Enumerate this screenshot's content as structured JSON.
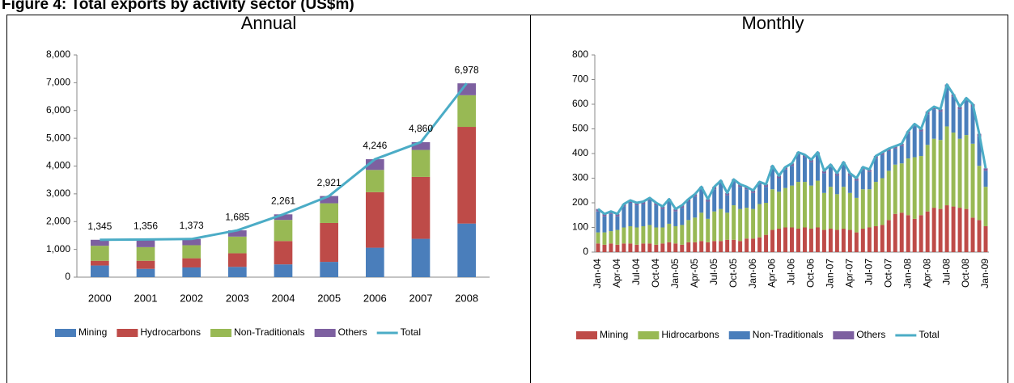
{
  "figure_title": "Figure 4: Total exports by activity sector (US$m)",
  "chart_data": [
    {
      "type": "bar",
      "stacked": true,
      "title": "Annual",
      "legend": "bottom",
      "grid": false,
      "categories": [
        "2000",
        "2001",
        "2002",
        "2003",
        "2004",
        "2005",
        "2006",
        "2007",
        "2008"
      ],
      "ylim": [
        0,
        8000
      ],
      "yticks": [
        0,
        {
          "value": 1000,
          "label": "1,000"
        },
        {
          "value": 2000,
          "label": "2,000"
        },
        {
          "value": 3000,
          "label": "3,000"
        },
        {
          "value": 4000,
          "label": "4,000"
        },
        {
          "value": 5000,
          "label": "5,000"
        },
        {
          "value": 6000,
          "label": "6,000"
        },
        {
          "value": 7000,
          "label": "7,000"
        },
        {
          "value": 8000,
          "label": "8,000"
        }
      ],
      "series": [
        {
          "name": "Mining",
          "color": "#4a7ebb",
          "values": [
            420,
            300,
            350,
            370,
            460,
            550,
            1060,
            1380,
            1930
          ]
        },
        {
          "name": "Hydrocarbons",
          "color": "#be4b48",
          "values": [
            170,
            290,
            330,
            490,
            840,
            1400,
            2000,
            2230,
            3480
          ]
        },
        {
          "name": "Non-Traditionals",
          "color": "#98b954",
          "values": [
            540,
            490,
            470,
            600,
            760,
            710,
            800,
            970,
            1140
          ]
        },
        {
          "name": "Others",
          "color": "#7d60a0",
          "values": [
            215,
            276,
            223,
            225,
            201,
            261,
            386,
            280,
            428
          ]
        },
        {
          "name": "Total",
          "type": "line",
          "color": "#4bacc6",
          "values": [
            1345,
            1356,
            1373,
            1685,
            2261,
            2921,
            4246,
            4860,
            6978
          ],
          "value_labels": [
            "1,345",
            "1,356",
            "1,373",
            "1,685",
            "2,261",
            "2,921",
            "4,246",
            "4,860",
            "6,978"
          ]
        }
      ]
    },
    {
      "type": "bar",
      "stacked": true,
      "title": "Monthly",
      "legend": "bottom",
      "grid": false,
      "categories": [
        "Jan-04",
        null,
        null,
        "Apr-04",
        null,
        null,
        "Jul-04",
        null,
        null,
        "Oct-04",
        null,
        null,
        "Jan-05",
        null,
        null,
        "Apr-05",
        null,
        null,
        "Jul-05",
        null,
        null,
        "Oct-05",
        null,
        null,
        "Jan-06",
        null,
        null,
        "Apr-06",
        null,
        null,
        "Jul-06",
        null,
        null,
        "Oct-06",
        null,
        null,
        "Jan-07",
        null,
        null,
        "Apr-07",
        null,
        null,
        "Jul-07",
        null,
        null,
        "Oct-07",
        null,
        null,
        "Jan-08",
        null,
        null,
        "Apr-08",
        null,
        null,
        "Jul-08",
        null,
        null,
        "Oct-08",
        null,
        null,
        "Jan-09"
      ],
      "ylim": [
        0,
        800
      ],
      "yticks": [
        0,
        100,
        200,
        300,
        400,
        500,
        600,
        700,
        800
      ],
      "series": [
        {
          "name": "Mining",
          "color": "#be4b48",
          "values": [
            35,
            30,
            35,
            30,
            35,
            35,
            30,
            35,
            35,
            30,
            35,
            40,
            35,
            30,
            40,
            40,
            45,
            40,
            45,
            45,
            50,
            50,
            45,
            55,
            55,
            60,
            70,
            90,
            95,
            100,
            100,
            95,
            100,
            95,
            100,
            90,
            95,
            90,
            95,
            90,
            80,
            95,
            100,
            105,
            110,
            130,
            155,
            160,
            150,
            135,
            150,
            165,
            180,
            175,
            190,
            185,
            180,
            175,
            140,
            130,
            105
          ]
        },
        {
          "name": "Hidrocarbons",
          "color": "#98b954",
          "values": [
            45,
            50,
            50,
            60,
            65,
            70,
            70,
            70,
            75,
            70,
            65,
            75,
            70,
            80,
            90,
            100,
            115,
            95,
            120,
            130,
            110,
            140,
            130,
            125,
            120,
            135,
            130,
            165,
            150,
            160,
            170,
            190,
            185,
            175,
            190,
            150,
            170,
            145,
            170,
            150,
            140,
            160,
            155,
            180,
            190,
            200,
            200,
            200,
            230,
            250,
            240,
            270,
            280,
            280,
            320,
            300,
            280,
            300,
            300,
            220,
            160
          ]
        },
        {
          "name": "Non-Traditionals",
          "color": "#4a7ebb",
          "values": [
            85,
            65,
            70,
            55,
            85,
            95,
            90,
            90,
            100,
            90,
            75,
            90,
            60,
            70,
            75,
            85,
            95,
            70,
            90,
            105,
            70,
            95,
            90,
            75,
            65,
            80,
            65,
            85,
            55,
            75,
            80,
            110,
            100,
            95,
            105,
            80,
            80,
            75,
            90,
            70,
            70,
            80,
            70,
            95,
            95,
            80,
            65,
            70,
            100,
            125,
            100,
            125,
            120,
            115,
            160,
            145,
            120,
            140,
            150,
            120,
            65
          ]
        },
        {
          "name": "Others",
          "color": "#7d60a0",
          "values": [
            10,
            10,
            10,
            10,
            10,
            10,
            10,
            10,
            10,
            10,
            10,
            10,
            10,
            10,
            10,
            10,
            10,
            10,
            10,
            10,
            10,
            10,
            10,
            10,
            10,
            10,
            10,
            10,
            10,
            10,
            10,
            10,
            10,
            10,
            10,
            10,
            10,
            10,
            10,
            10,
            10,
            10,
            10,
            10,
            10,
            10,
            10,
            10,
            10,
            10,
            10,
            10,
            10,
            10,
            10,
            10,
            10,
            10,
            10,
            10,
            10
          ]
        },
        {
          "name": "Total",
          "type": "line",
          "color": "#4bacc6",
          "values": [
            175,
            155,
            165,
            155,
            195,
            210,
            200,
            205,
            220,
            200,
            185,
            215,
            175,
            190,
            215,
            235,
            265,
            215,
            265,
            290,
            240,
            295,
            275,
            265,
            250,
            285,
            275,
            350,
            310,
            345,
            360,
            405,
            395,
            375,
            405,
            330,
            355,
            320,
            365,
            320,
            300,
            345,
            335,
            390,
            405,
            420,
            430,
            440,
            490,
            520,
            500,
            570,
            590,
            580,
            680,
            640,
            590,
            625,
            600,
            480,
            340
          ]
        }
      ]
    }
  ]
}
